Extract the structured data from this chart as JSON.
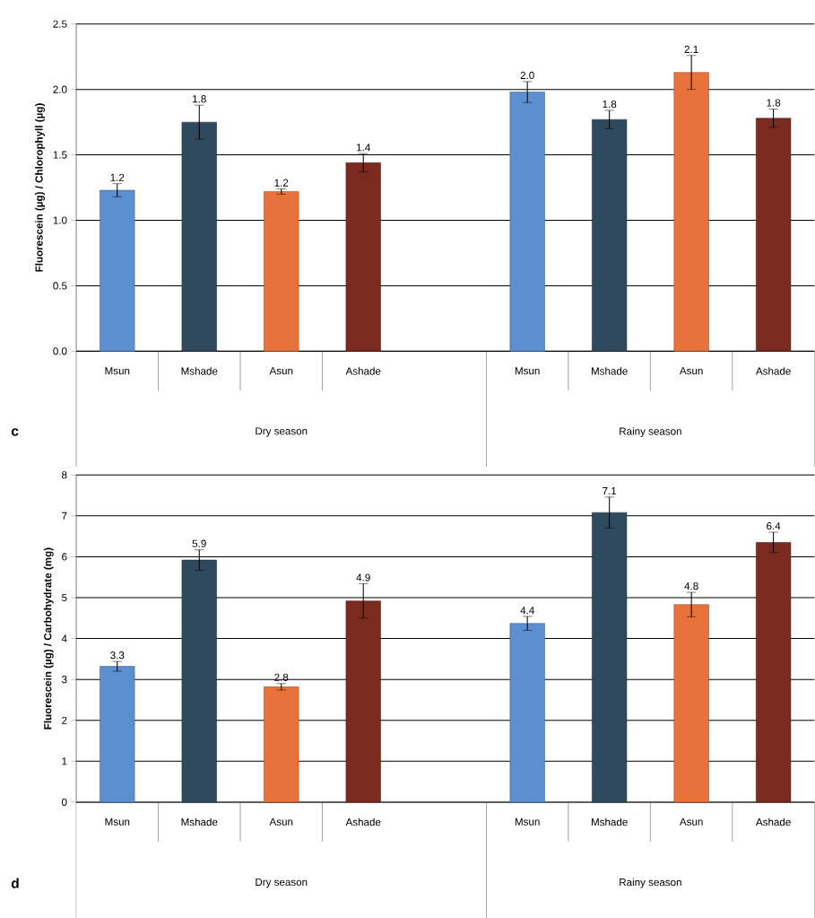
{
  "chart_data": [
    {
      "type": "bar",
      "ylabel": "Fluorescein (µg) / Chlorophyll (µg)",
      "categories": [
        "Msun",
        "Mshade",
        "Asun",
        "Ashade",
        null,
        "Msun",
        "Mshade",
        "Asun",
        "Ashade"
      ],
      "values": [
        1.23,
        1.75,
        1.22,
        1.44,
        null,
        1.98,
        1.77,
        2.13,
        1.78
      ],
      "errors": [
        0.05,
        0.13,
        0.02,
        0.07,
        null,
        0.08,
        0.07,
        0.13,
        0.07
      ],
      "value_labels": [
        "1.2",
        "1.8",
        "1.2",
        "1.4",
        null,
        "2.0",
        "1.8",
        "2.1",
        "1.8"
      ],
      "colors": [
        "#5b8fd0",
        "#2f4a5f",
        "#e8733a",
        "#7b2a1f",
        "#ffffff",
        "#5b8fd0",
        "#2f4a5f",
        "#e8733a",
        "#7b2a1f"
      ],
      "ylim": [
        0,
        2.5
      ],
      "yticks": [
        {
          "value": 0,
          "label": "0.0"
        },
        {
          "value": 0.5,
          "label": "0.5"
        },
        {
          "value": 1,
          "label": "1.0"
        },
        {
          "value": 1.5,
          "label": "1.5"
        },
        {
          "value": 2,
          "label": "2.0"
        },
        {
          "value": 2.5,
          "label": "2.5"
        }
      ],
      "grid": "y",
      "annotations": [
        "c",
        "Dry season",
        "Rainy season"
      ]
    },
    {
      "type": "bar",
      "ylabel": "Fluorescein (µg) / Carbohydrate (mg)",
      "categories": [
        "Msun",
        "Mshade",
        "Asun",
        "Ashade",
        null,
        "Msun",
        "Mshade",
        "Asun",
        "Ashade"
      ],
      "values": [
        3.32,
        5.92,
        2.82,
        4.92,
        null,
        4.37,
        7.08,
        4.83,
        6.35
      ],
      "errors": [
        0.12,
        0.25,
        0.08,
        0.42,
        null,
        0.17,
        0.38,
        0.3,
        0.25
      ],
      "value_labels": [
        "3.3",
        "5.9",
        "2.8",
        "4.9",
        null,
        "4.4",
        "7.1",
        "4.8",
        "6.4"
      ],
      "colors": [
        "#5b8fd0",
        "#2f4a5f",
        "#e8733a",
        "#7b2a1f",
        "#ffffff",
        "#5b8fd0",
        "#2f4a5f",
        "#e8733a",
        "#7b2a1f"
      ],
      "ylim": [
        0,
        8
      ],
      "yticks": [
        0,
        1,
        2,
        3,
        4,
        5,
        6,
        7,
        8
      ],
      "grid": "y",
      "annotations": [
        "d",
        "Dry season",
        "Rainy season"
      ]
    }
  ]
}
